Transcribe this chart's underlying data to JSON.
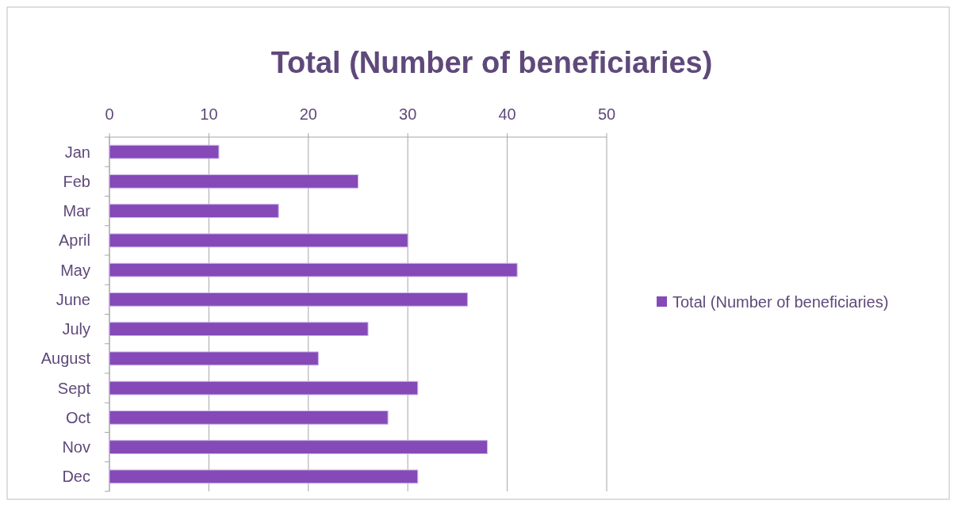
{
  "chart_data": {
    "type": "bar",
    "orientation": "horizontal",
    "title": "Total (Number of beneficiaries)",
    "categories": [
      "Jan",
      "Feb",
      "Mar",
      "April",
      "May",
      "June",
      "July",
      "August",
      "Sept",
      "Oct",
      "Nov",
      "Dec"
    ],
    "series": [
      {
        "name": "Total (Number of beneficiaries)",
        "color": "#8549b8",
        "values": [
          11,
          25,
          17,
          30,
          41,
          36,
          26,
          21,
          31,
          28,
          38,
          31
        ]
      }
    ],
    "xlim": [
      0,
      50
    ],
    "xticks": [
      0,
      10,
      20,
      30,
      40,
      50
    ],
    "grid": "x",
    "legend": "right"
  }
}
